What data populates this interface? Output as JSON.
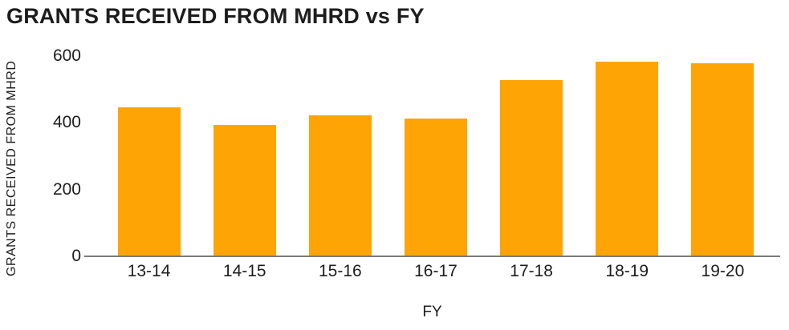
{
  "chart_data": {
    "type": "bar",
    "title": "GRANTS RECEIVED FROM MHRD vs FY",
    "categories": [
      "13-14",
      "14-15",
      "15-16",
      "16-17",
      "17-18",
      "18-19",
      "19-20"
    ],
    "values": [
      445,
      392,
      420,
      410,
      525,
      580,
      577
    ],
    "xlabel": "FY",
    "ylabel": "GRANTS RECEIVED FROM MHRD",
    "ylim": [
      0,
      600
    ],
    "yticks": [
      0,
      200,
      400,
      600
    ],
    "grid": false,
    "legend_position": "none",
    "bar_color": "#FFA405",
    "axis_line_color": "#7a7a7a",
    "text_color": "#1d1d1d",
    "background_color": "#ffffff"
  }
}
